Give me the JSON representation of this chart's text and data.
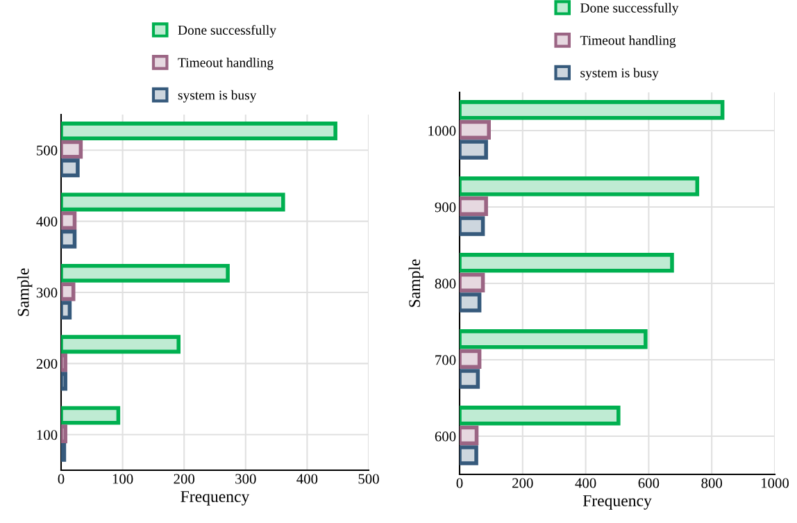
{
  "chart_data": [
    {
      "type": "bar",
      "orientation": "horizontal",
      "xlabel": "Frequency",
      "ylabel": "Sample",
      "categories": [
        "500",
        "400",
        "300",
        "200",
        "100"
      ],
      "xlim": [
        0,
        500
      ],
      "xticks": [
        0,
        100,
        200,
        300,
        400,
        500
      ],
      "grid": true,
      "legend": "top",
      "series": [
        {
          "name": "Done successfully",
          "color": "#00b050",
          "values": [
            446,
            361,
            271,
            191,
            93
          ]
        },
        {
          "name": "Timeout handling",
          "color": "#9b6584",
          "values": [
            32,
            22,
            20,
            7,
            7
          ]
        },
        {
          "name": "system is busy",
          "color": "#365a7c",
          "values": [
            27,
            22,
            14,
            7,
            5
          ]
        }
      ]
    },
    {
      "type": "bar",
      "orientation": "horizontal",
      "xlabel": "Frequency",
      "ylabel": "Sample",
      "categories": [
        "1000",
        "900",
        "800",
        "700",
        "600"
      ],
      "xlim": [
        0,
        1000
      ],
      "xticks": [
        0,
        200,
        400,
        600,
        800,
        1000
      ],
      "grid": true,
      "legend": "top",
      "series": [
        {
          "name": "Done successfully",
          "color": "#00b050",
          "values": [
            834,
            754,
            674,
            590,
            504
          ]
        },
        {
          "name": "Timeout handling",
          "color": "#9b6584",
          "values": [
            93,
            84,
            74,
            63,
            54
          ]
        },
        {
          "name": "system is busy",
          "color": "#365a7c",
          "values": [
            84,
            74,
            63,
            58,
            53
          ]
        }
      ]
    }
  ]
}
